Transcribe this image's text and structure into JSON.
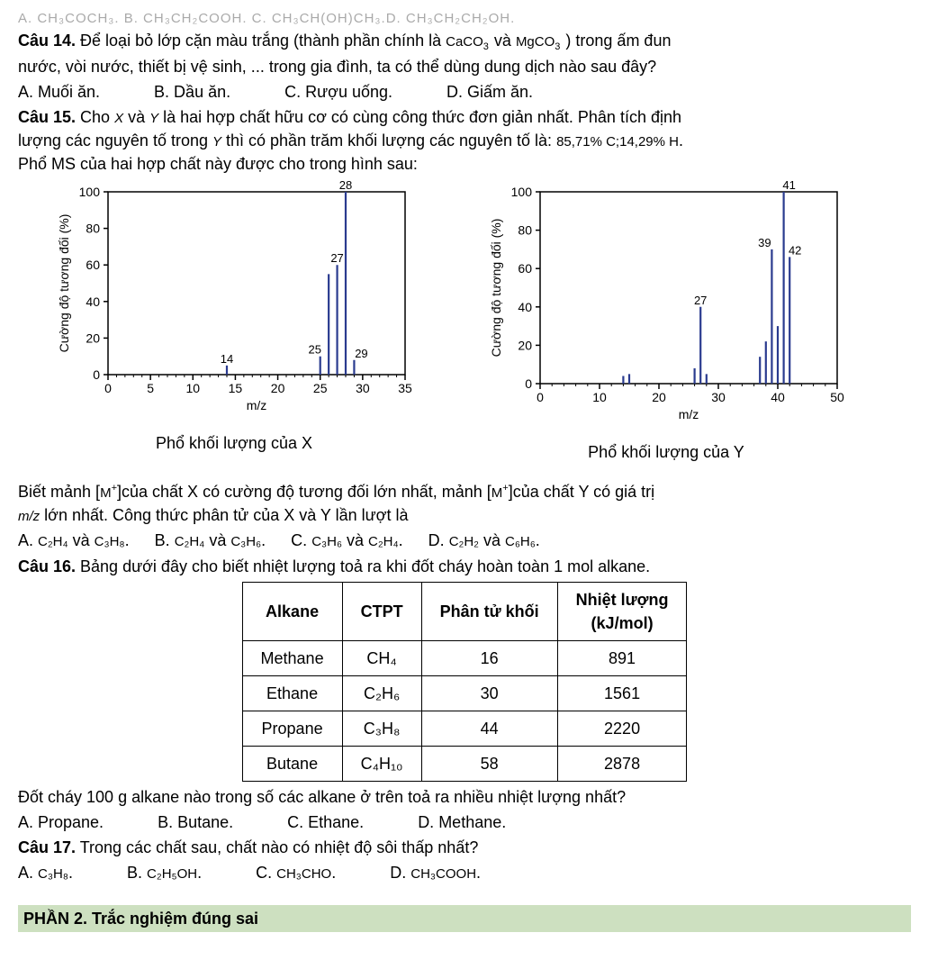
{
  "q13": {
    "partial_options_line": "A. CH₃COCH₃.      B. CH₃CH₂COOH.   C. CH₃CH(OH)CH₃.D. CH₃CH₂CH₂OH."
  },
  "q14": {
    "num": "Câu 14.",
    "text_a": " Để loại bỏ lớp cặn màu trắng (thành phần chính là ",
    "f1": "CaCO",
    "f1_sub": "3",
    "and": " và ",
    "f2": "MgCO",
    "f2_sub": "3",
    "text_b": " ) trong ấm đun",
    "line2": "nước, vòi nước, thiết bị vệ sinh, ... trong gia đình, ta có thể dùng dung dịch nào sau đây?",
    "optA": "A. Muối ăn.",
    "optB": "B. Dầu ăn.",
    "optC": "C. Rượu uống.",
    "optD": "D. Giấm ăn."
  },
  "q15": {
    "num": "Câu 15.",
    "text_a": " Cho ",
    "X": "X",
    "and1": " và ",
    "Y": "Y",
    "text_b": " là hai hợp chất hữu cơ có cùng công thức đơn giản nhất. Phân tích định",
    "line2_a": "lượng các nguyên tố trong ",
    "line2_b": " thì có phần trăm khối lượng các nguyên tố là: ",
    "percent": "85,71% C;14,29% H",
    "period": ".",
    "line3": "Phổ MS của hai hợp chất này được cho trong hình sau:",
    "chartX_caption": "Phổ khối lượng của X",
    "chartY_caption": "Phổ khối lượng của Y",
    "after_a": "Biết mảnh ",
    "Mplus": "M",
    "after_b": "của chất X có cường độ tương đối lớn nhất, mảnh ",
    "after_c": "của chất Y có giá trị",
    "line_mz": " lớn nhất. Công thức phân tử của X và Y lần lượt là",
    "mz": "m/z",
    "optA_a": "A. ",
    "optA_f1": "C₂H₄",
    "optA_mid": " và ",
    "optA_f2": "C₃H₈",
    "optA_end": ".",
    "optB_a": "B. ",
    "optB_f1": "C₂H₄",
    "optB_mid": " và ",
    "optB_f2": "C₃H₆",
    "optB_end": ".",
    "optC_a": "C. ",
    "optC_f1": "C₃H₆",
    "optC_mid": " và ",
    "optC_f2": "C₂H₄",
    "optC_end": ".",
    "optD_a": "D. ",
    "optD_f1": "C₂H₂",
    "optD_mid": " và ",
    "optD_f2": "C₆H₆",
    "optD_end": ".",
    "chart": {
      "ylabel": "Cường độ tương đối (%)",
      "xlabel": "m/z",
      "yticks": [
        0,
        20,
        40,
        60,
        80,
        100
      ],
      "X": {
        "xticks": [
          0,
          5,
          10,
          15,
          20,
          25,
          30,
          35
        ],
        "xlim": [
          0,
          35
        ],
        "peaks": [
          {
            "mz": 14,
            "int": 5,
            "label": "14"
          },
          {
            "mz": 25,
            "int": 10,
            "label": "25"
          },
          {
            "mz": 26,
            "int": 55,
            "label": ""
          },
          {
            "mz": 27,
            "int": 60,
            "label": "27"
          },
          {
            "mz": 28,
            "int": 100,
            "label": "28"
          },
          {
            "mz": 29,
            "int": 8,
            "label": "29"
          }
        ]
      },
      "Y": {
        "xticks": [
          0,
          10,
          20,
          30,
          40,
          50
        ],
        "xlim": [
          0,
          50
        ],
        "peaks": [
          {
            "mz": 14,
            "int": 4,
            "label": ""
          },
          {
            "mz": 15,
            "int": 5,
            "label": ""
          },
          {
            "mz": 26,
            "int": 8,
            "label": ""
          },
          {
            "mz": 27,
            "int": 40,
            "label": "27"
          },
          {
            "mz": 28,
            "int": 5,
            "label": ""
          },
          {
            "mz": 37,
            "int": 14,
            "label": ""
          },
          {
            "mz": 38,
            "int": 22,
            "label": ""
          },
          {
            "mz": 39,
            "int": 70,
            "label": "39"
          },
          {
            "mz": 40,
            "int": 30,
            "label": ""
          },
          {
            "mz": 41,
            "int": 100,
            "label": "41"
          },
          {
            "mz": 42,
            "int": 66,
            "label": "42"
          }
        ]
      },
      "bar_color": "#2a3b8f",
      "axis_color": "#000000",
      "label_fontsize": 14,
      "tick_fontsize": 14
    }
  },
  "q16": {
    "num": "Câu 16.",
    "text": " Bảng dưới đây cho biết nhiệt lượng toả ra khi đốt cháy hoàn toàn 1 mol alkane.",
    "headers": [
      "Alkane",
      "CTPT",
      "Phân tử khối",
      "Nhiệt lượng\n(kJ/mol)"
    ],
    "h4_l1": "Nhiệt lượng",
    "h4_l2": "(kJ/mol)",
    "rows": [
      [
        "Methane",
        "CH₄",
        "16",
        "891"
      ],
      [
        "Ethane",
        "C₂H₆",
        "30",
        "1561"
      ],
      [
        "Propane",
        "C₃H₈",
        "44",
        "2220"
      ],
      [
        "Butane",
        "C₄H₁₀",
        "58",
        "2878"
      ]
    ],
    "line2": "Đốt cháy 100 g alkane nào trong số các alkane ở trên toả ra nhiều nhiệt lượng nhất?",
    "optA": "A. Propane.",
    "optB": "B. Butane.",
    "optC": "C. Ethane.",
    "optD": "D. Methane."
  },
  "q17": {
    "num": "Câu 17.",
    "text": " Trong các chất sau, chất nào có nhiệt độ sôi thấp nhất?",
    "optA_a": "A. ",
    "optA_f": "C₃H₈",
    "optA_e": ".",
    "optB_a": "B. ",
    "optB_f": "C₂H₅OH",
    "optB_e": ".",
    "optC_a": "C. ",
    "optC_f": "CH₃CHO",
    "optC_e": ".",
    "optD_a": "D. ",
    "optD_f": "CH₃COOH",
    "optD_e": "."
  },
  "section2": "PHẦN 2. Trắc nghiệm đúng sai"
}
